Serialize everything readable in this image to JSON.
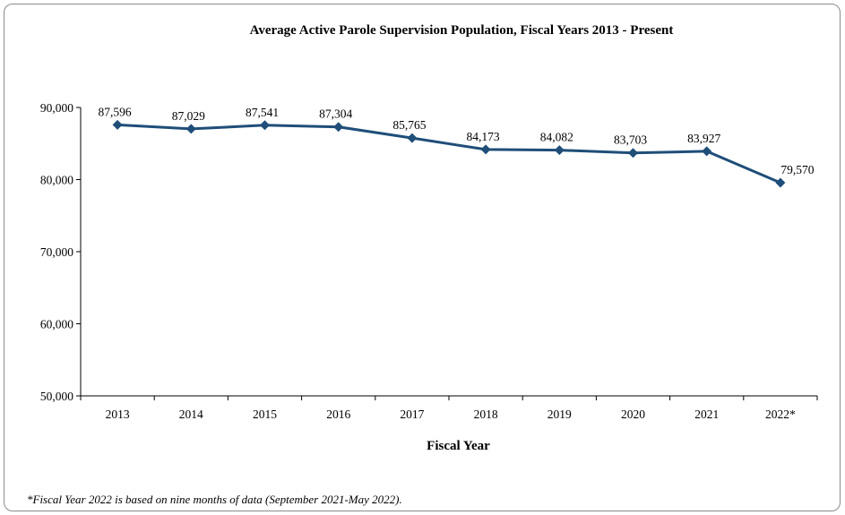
{
  "chart_data": {
    "type": "line",
    "title": "Average Active Parole Supervision Population, Fiscal Years 2013 - Present",
    "xlabel": "Fiscal Year",
    "ylabel": "",
    "categories": [
      "2013",
      "2014",
      "2015",
      "2016",
      "2017",
      "2018",
      "2019",
      "2020",
      "2021",
      "2022*"
    ],
    "series": [
      {
        "values": [
          87596,
          87029,
          87541,
          87304,
          85765,
          84173,
          84082,
          83703,
          83927,
          79570
        ],
        "labels": [
          "87,596",
          "87,029",
          "87,541",
          "87,304",
          "85,765",
          "84,173",
          "84,082",
          "83,703",
          "83,927",
          "79,570"
        ],
        "color": "#1f4e79"
      }
    ],
    "ylim": [
      50000,
      90000
    ],
    "yticks": [
      50000,
      60000,
      70000,
      80000,
      90000
    ],
    "ytick_labels": [
      "50,000",
      "60,000",
      "70,000",
      "80,000",
      "90,000"
    ],
    "grid": false,
    "marker": "diamond"
  },
  "footnote": "*Fiscal Year 2022 is based on nine months of data (September 2021-May 2022)."
}
